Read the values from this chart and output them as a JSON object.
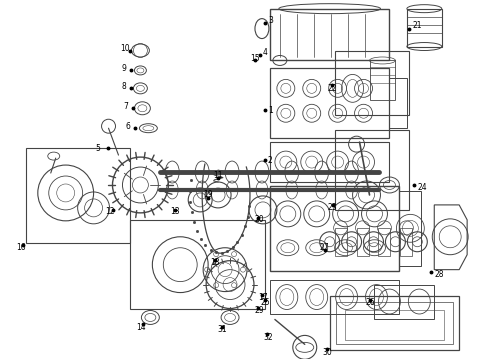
{
  "background": "#ffffff",
  "line_color": "#444444",
  "text_color": "#000000",
  "label_fontsize": 5.5,
  "fig_width": 4.9,
  "fig_height": 3.6,
  "dpi": 100
}
